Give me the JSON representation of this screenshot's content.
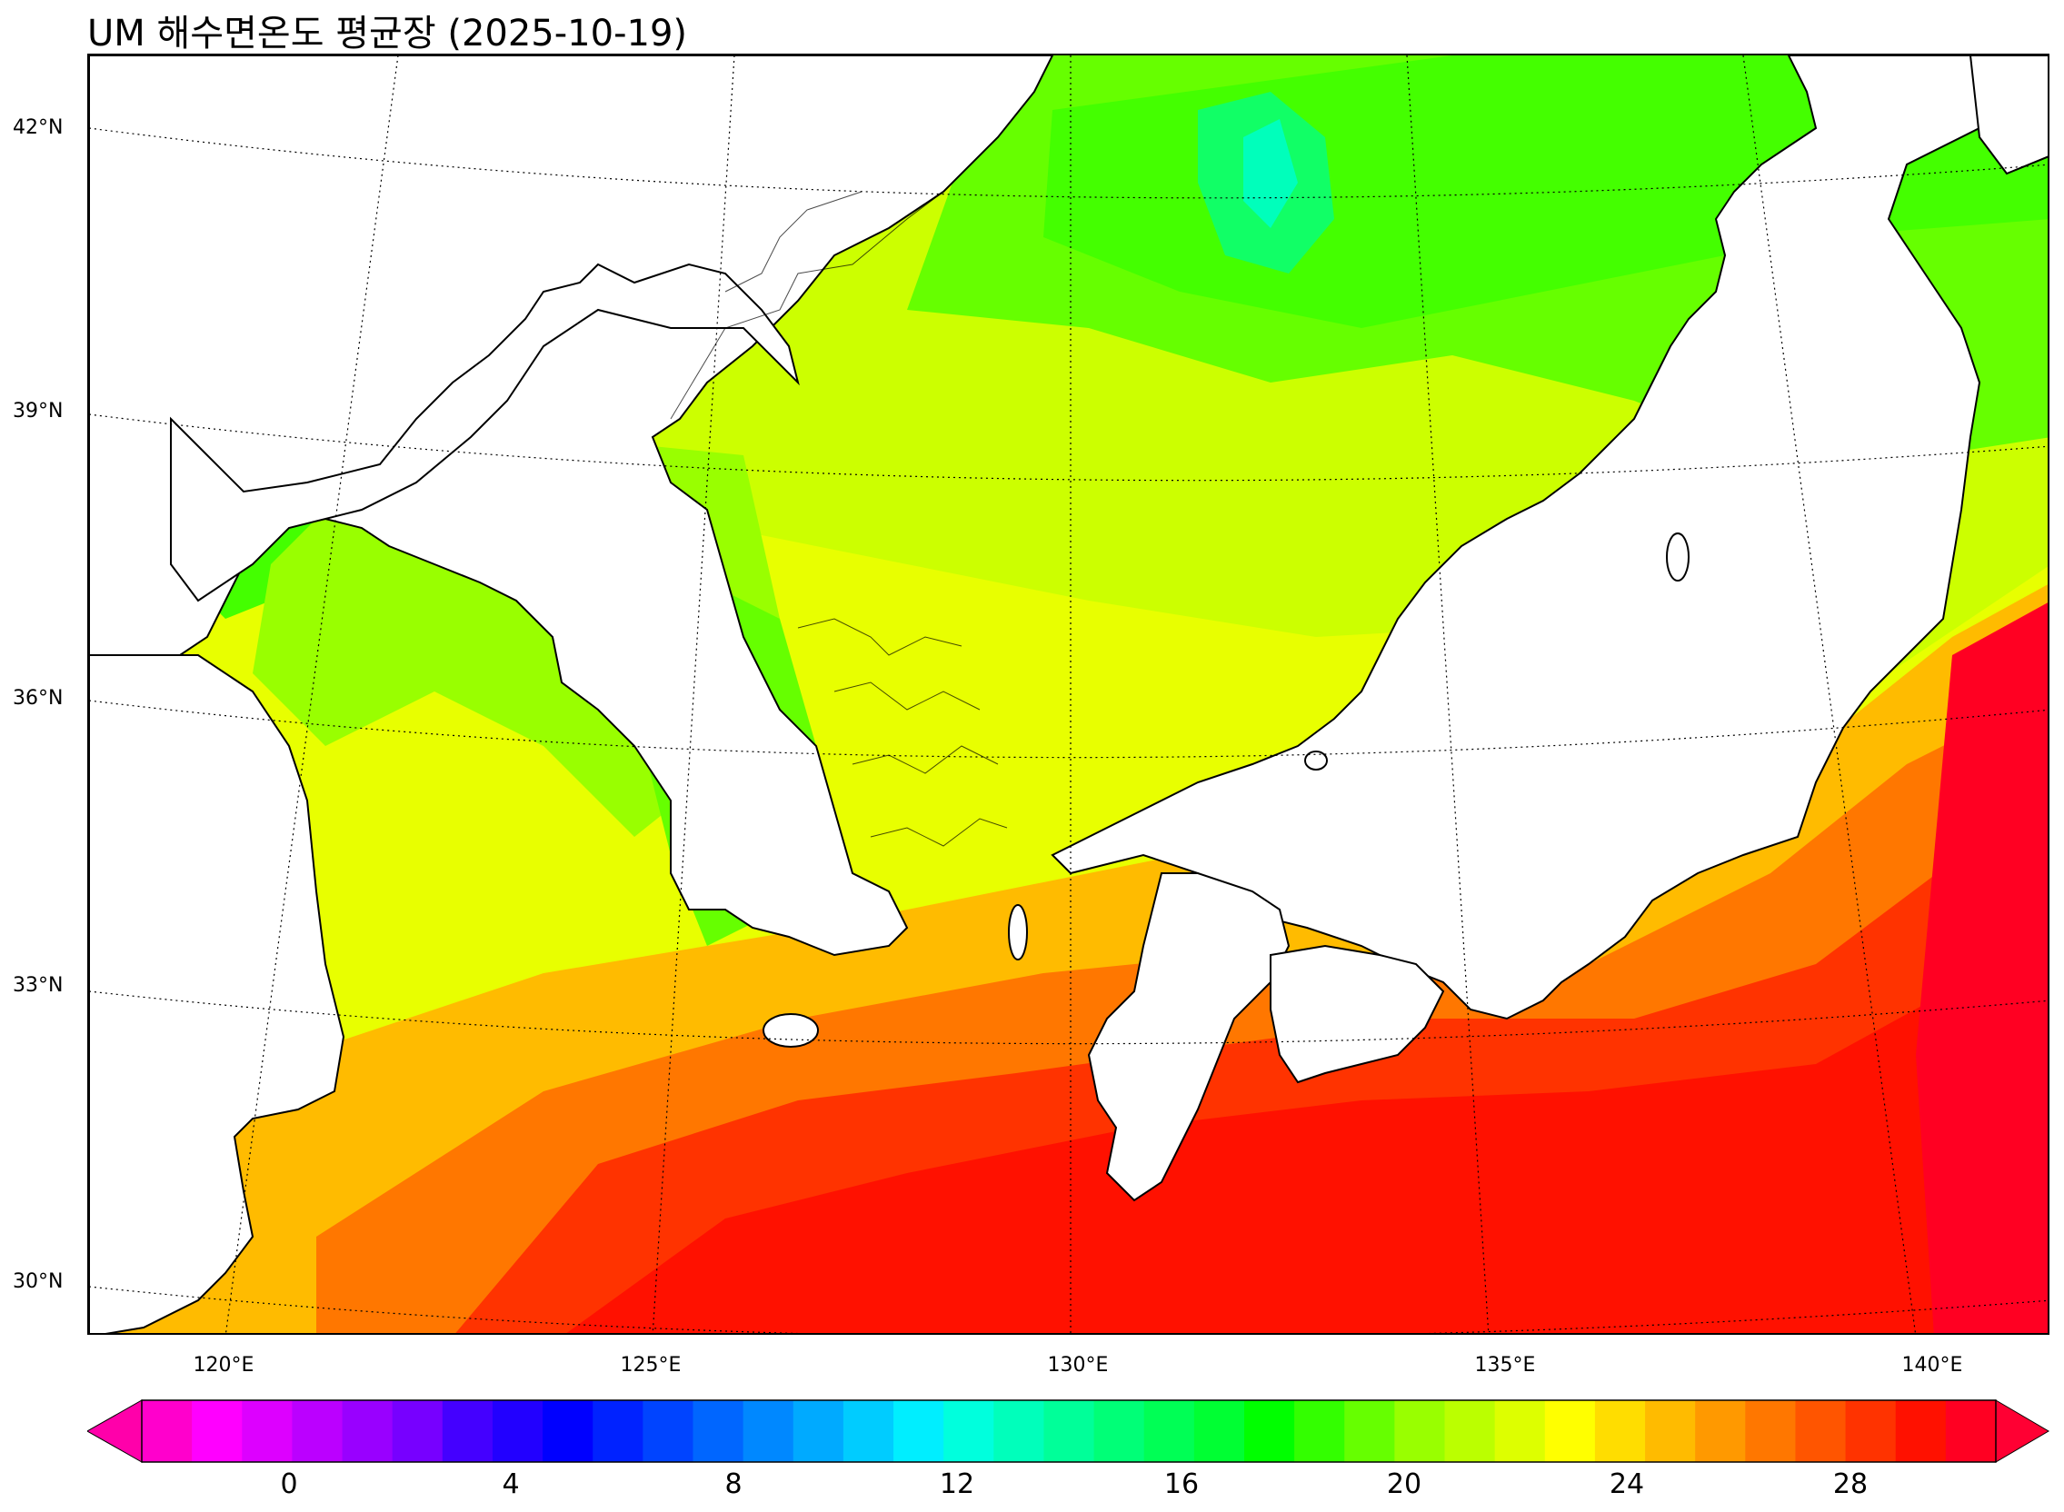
{
  "title": "UM 해수면온도 평균장 (2025-10-19)",
  "lat_labels": [
    "42°N",
    "39°N",
    "36°N",
    "33°N",
    "30°N"
  ],
  "lon_labels": [
    "120°E",
    "125°E",
    "130°E",
    "135°E",
    "140°E"
  ],
  "colorbar": {
    "ticks": [
      "0",
      "4",
      "8",
      "12",
      "16",
      "20",
      "24",
      "28"
    ],
    "colors": [
      "#ff00cc",
      "#ff00ff",
      "#dd00ff",
      "#bb00ff",
      "#9900ff",
      "#7700ff",
      "#4400ff",
      "#2200ff",
      "#0000ff",
      "#0022ff",
      "#0044ff",
      "#0066ff",
      "#0088ff",
      "#00aaff",
      "#00ccff",
      "#00eeff",
      "#00ffdd",
      "#00ffbb",
      "#00ff99",
      "#00ff77",
      "#00ff55",
      "#00ff33",
      "#00ff00",
      "#33ff00",
      "#66ff00",
      "#99ff00",
      "#bbff00",
      "#ddff00",
      "#ffff00",
      "#ffdd00",
      "#ffbb00",
      "#ff9900",
      "#ff7700",
      "#ff5500",
      "#ff3300",
      "#ff1100",
      "#ff0022"
    ],
    "under_color": "#ff00aa",
    "over_color": "#ff0033"
  }
}
